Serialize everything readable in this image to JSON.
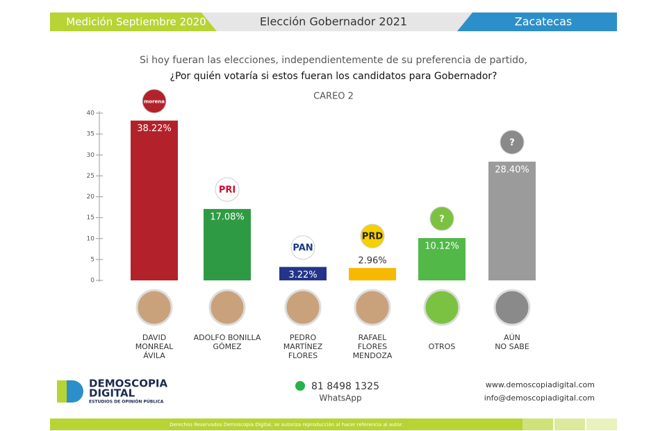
{
  "header": {
    "left": "Medición Septiembre 2020",
    "center": "Elección Gobernador 2021",
    "right": "Zacatecas"
  },
  "chart_data": {
    "type": "bar",
    "subtitle": "Si hoy fueran las elecciones, independientemente de su preferencia de partido,",
    "title": "¿Por quién votaría si estos fueran los candidatos para Gobernador?",
    "annotation": "CAREO 2",
    "categories": [
      "DAVID\nMONREAL\nÁVILA",
      "ADOLFO BONILLA\nGÓMEZ",
      "PEDRO\nMARTÍNEZ\nFLORES",
      "RAFAEL\nFLORES\nMENDOZA",
      "OTROS",
      "AÚN\nNO SABE"
    ],
    "values": [
      38.22,
      17.08,
      3.22,
      2.96,
      10.12,
      28.4
    ],
    "value_labels": [
      "38.22%",
      "17.08%",
      "3.22%",
      "2.96%",
      "10.12%",
      "28.40%"
    ],
    "colors": [
      "#b3222a",
      "#2f9a44",
      "#24348a",
      "#f7b900",
      "#52b848",
      "#9b9b9b"
    ],
    "logos": [
      "morena",
      "PRI",
      "PAN",
      "PRD",
      "?",
      "?"
    ],
    "ylim": [
      0,
      40
    ],
    "yticks": [
      0,
      5,
      10,
      15,
      20,
      25,
      30,
      35,
      40
    ]
  },
  "footer": {
    "brand": "DEMOSCOPIA",
    "brand2": "DIGITAL",
    "tagline": "ESTUDIOS DE OPINIÓN PÚBLICA",
    "phone": "81 8498 1325",
    "phone_label": "WhatsApp",
    "web": "www.demoscopiadigital.com",
    "email": "info@demoscopiadigital.com",
    "rights": "Derechos Reservados Demoscopia Digital, se autoriza reproducción al hacer referencia al autor."
  }
}
